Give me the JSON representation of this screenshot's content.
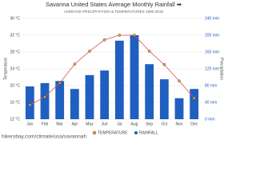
{
  "chart_data": {
    "type": "bar-line",
    "title": "Savanna United States Average Monthly Rainfall ➡",
    "subtitle": "AVERAGE PRECIPITATION & TEMPERATURES 1980-2018",
    "y_label": "Temperature",
    "y2_label": "Precipitation",
    "categories": [
      "Jan",
      "Feb",
      "Mar",
      "Apr",
      "May",
      "Jun",
      "Jul",
      "Aug",
      "Sep",
      "Oct",
      "Nov",
      "Dec"
    ],
    "series": [
      {
        "name": "TEMPERATURE",
        "type": "line",
        "color": "#e0504a",
        "marker_color": "#f0a040",
        "axis": "y",
        "values": [
          15.4,
          17.3,
          20.6,
          25.1,
          28.2,
          30.9,
          32,
          32,
          28.2,
          25,
          21.1,
          17
        ]
      },
      {
        "name": "RAINFALL",
        "type": "bar",
        "color": "#1f5fbf",
        "axis": "y2",
        "values": [
          78,
          86,
          91,
          72,
          105,
          116,
          187,
          200,
          131,
          95,
          50,
          72
        ]
      }
    ],
    "ylim": [
      12,
      36
    ],
    "yticks": [
      {
        "value": 12,
        "label": "12 °C"
      },
      {
        "value": 16,
        "label": "16 °C"
      },
      {
        "value": 20,
        "label": "20 °C"
      },
      {
        "value": 24,
        "label": "24 °C"
      },
      {
        "value": 28,
        "label": "28 °C"
      },
      {
        "value": 32,
        "label": "32 °C"
      },
      {
        "value": 36,
        "label": "36 °C"
      }
    ],
    "y2lim": [
      0,
      240
    ],
    "y2ticks": [
      {
        "value": 0,
        "label": "0 mm"
      },
      {
        "value": 40,
        "label": "40 mm"
      },
      {
        "value": 80,
        "label": "80 mm"
      },
      {
        "value": 120,
        "label": "120 mm"
      },
      {
        "value": 160,
        "label": "160 mm"
      },
      {
        "value": 200,
        "label": "200 mm"
      },
      {
        "value": 240,
        "label": "240 mm"
      }
    ],
    "grid": true,
    "legend": "bottom",
    "source": "hikersbay.com/climate/usa/savannah"
  }
}
